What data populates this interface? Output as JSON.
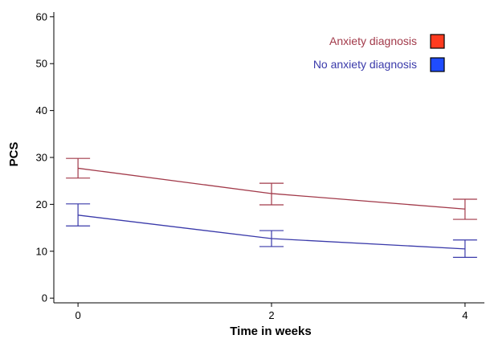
{
  "chart_data": {
    "type": "line",
    "title": "",
    "xlabel": "Time in weeks",
    "ylabel": "PCS",
    "x": [
      0,
      2,
      4
    ],
    "x_ticks": [
      "0",
      "2",
      "4"
    ],
    "y_ticks": [
      "0",
      "10",
      "20",
      "30",
      "40",
      "50",
      "60"
    ],
    "xlim": [
      -0.25,
      4.2
    ],
    "ylim": [
      -1,
      61
    ],
    "grid": false,
    "legend_position": "top-right",
    "series": [
      {
        "name": "Anxiety diagnosis",
        "color": "#a23a4a",
        "marker_color": "#ff3b1f",
        "values": [
          27.7,
          22.3,
          19.0
        ],
        "error_low": [
          25.6,
          19.9,
          16.8
        ],
        "error_high": [
          29.8,
          24.5,
          21.1
        ]
      },
      {
        "name": "No anxiety diagnosis",
        "color": "#3a3aaa",
        "marker_color": "#1f4cff",
        "values": [
          17.7,
          12.7,
          10.5
        ],
        "error_low": [
          15.4,
          11.0,
          8.7
        ],
        "error_high": [
          20.1,
          14.4,
          12.4
        ]
      }
    ]
  }
}
